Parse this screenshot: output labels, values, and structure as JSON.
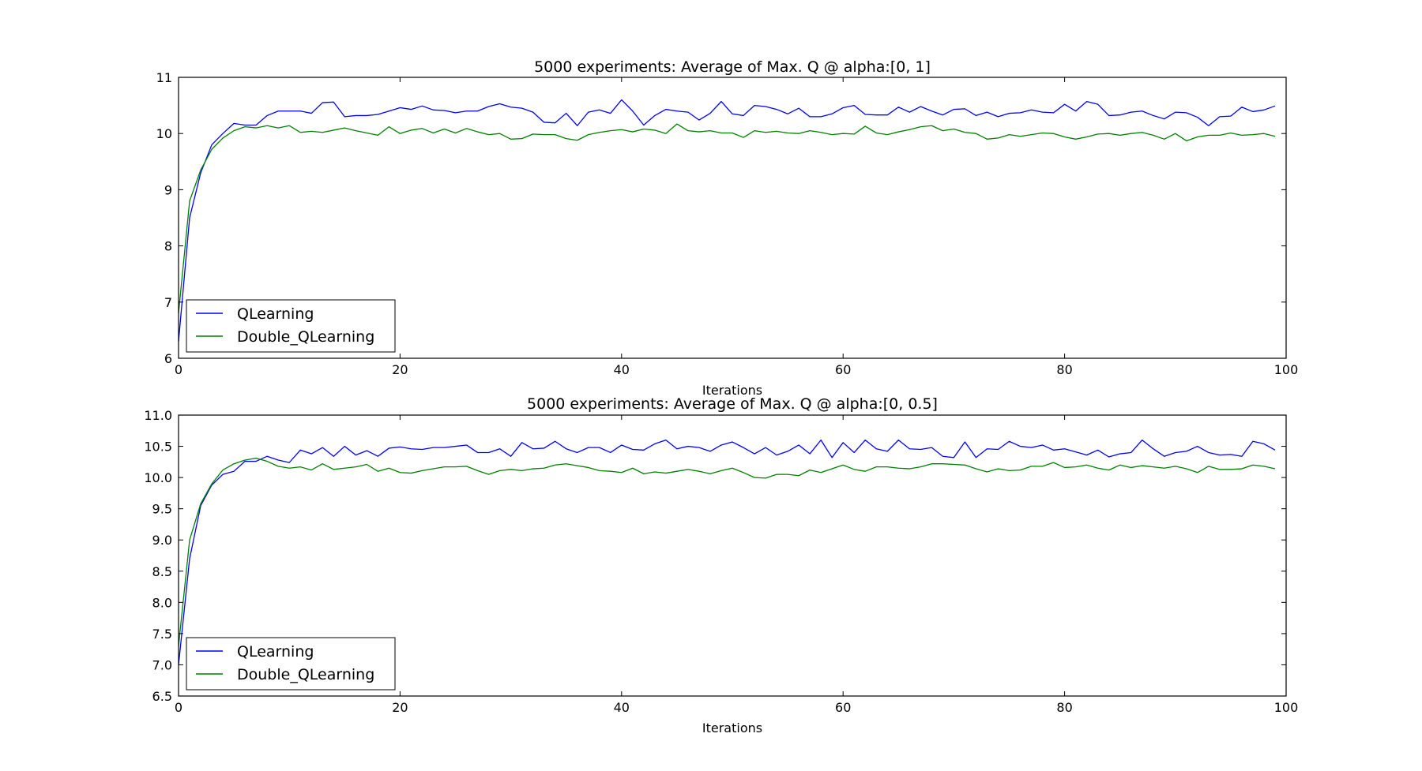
{
  "chart_data": [
    {
      "type": "line",
      "title": "5000 experiments: Average of Max. Q @ alpha:[0, 1]",
      "xlabel": "Iterations",
      "ylabel": "",
      "xlim": [
        0,
        100
      ],
      "ylim": [
        6,
        11
      ],
      "xticks": [
        0,
        20,
        40,
        60,
        80,
        100
      ],
      "yticks": [
        6,
        7,
        8,
        9,
        10,
        11
      ],
      "ytick_labels": [
        "6",
        "7",
        "8",
        "9",
        "10",
        "11"
      ],
      "grid": false,
      "legend_position": "lower-left",
      "series": [
        {
          "name": "QLearning",
          "color": "#0000ff",
          "values": [
            6.3,
            8.5,
            9.3,
            9.8,
            10.0,
            10.18,
            10.15,
            10.15,
            10.32,
            10.4,
            10.4,
            10.4,
            10.36,
            10.55,
            10.56,
            10.3,
            10.32,
            10.32,
            10.34,
            10.4,
            10.46,
            10.43,
            10.49,
            10.42,
            10.41,
            10.37,
            10.4,
            10.4,
            10.48,
            10.53,
            10.47,
            10.45,
            10.38,
            10.2,
            10.19,
            10.36,
            10.14,
            10.38,
            10.42,
            10.36,
            10.6,
            10.4,
            10.15,
            10.32,
            10.43,
            10.4,
            10.38,
            10.24,
            10.36,
            10.57,
            10.35,
            10.32,
            10.5,
            10.48,
            10.43,
            10.35,
            10.45,
            10.3,
            10.3,
            10.35,
            10.46,
            10.5,
            10.34,
            10.33,
            10.33,
            10.47,
            10.38,
            10.48,
            10.4,
            10.33,
            10.43,
            10.44,
            10.32,
            10.38,
            10.3,
            10.36,
            10.37,
            10.42,
            10.38,
            10.37,
            10.52,
            10.4,
            10.57,
            10.52,
            10.32,
            10.33,
            10.38,
            10.4,
            10.32,
            10.26,
            10.38,
            10.37,
            10.29,
            10.14,
            10.3,
            10.31,
            10.47,
            10.39,
            10.42,
            10.49
          ]
        },
        {
          "name": "Double_QLearning",
          "color": "#008000",
          "values": [
            6.8,
            8.8,
            9.35,
            9.72,
            9.92,
            10.05,
            10.12,
            10.1,
            10.14,
            10.1,
            10.14,
            10.02,
            10.04,
            10.02,
            10.06,
            10.1,
            10.05,
            10.01,
            9.97,
            10.12,
            10.0,
            10.06,
            10.09,
            10.01,
            10.08,
            10.01,
            10.09,
            10.03,
            9.98,
            10.0,
            9.9,
            9.91,
            9.99,
            9.98,
            9.98,
            9.91,
            9.88,
            9.98,
            10.02,
            10.05,
            10.07,
            10.03,
            10.08,
            10.06,
            10.0,
            10.17,
            10.05,
            10.03,
            10.05,
            10.01,
            10.01,
            9.93,
            10.05,
            10.02,
            10.04,
            10.01,
            10.0,
            10.05,
            10.02,
            9.98,
            10.0,
            9.99,
            10.13,
            10.01,
            9.98,
            10.03,
            10.07,
            10.12,
            10.14,
            10.05,
            10.08,
            10.02,
            10.0,
            9.9,
            9.92,
            9.98,
            9.95,
            9.98,
            10.01,
            10.0,
            9.94,
            9.9,
            9.94,
            9.99,
            10.0,
            9.97,
            10.0,
            10.02,
            9.97,
            9.9,
            10.0,
            9.87,
            9.94,
            9.97,
            9.97,
            10.01,
            9.97,
            9.98,
            10.0,
            9.95
          ]
        }
      ]
    },
    {
      "type": "line",
      "title": "5000 experiments: Average of Max. Q @ alpha:[0, 0.5]",
      "xlabel": "Iterations",
      "ylabel": "",
      "xlim": [
        0,
        100
      ],
      "ylim": [
        6.5,
        11
      ],
      "xticks": [
        0,
        20,
        40,
        60,
        80,
        100
      ],
      "yticks": [
        6.5,
        7.0,
        7.5,
        8.0,
        8.5,
        9.0,
        9.5,
        10.0,
        10.5,
        11.0
      ],
      "ytick_labels": [
        "6.5",
        "7.0",
        "7.5",
        "8.0",
        "8.5",
        "9.0",
        "9.5",
        "10.0",
        "10.5",
        "11.0"
      ],
      "grid": false,
      "legend_position": "lower-left",
      "series": [
        {
          "name": "QLearning",
          "color": "#0000ff",
          "values": [
            7.0,
            8.7,
            9.55,
            9.88,
            10.05,
            10.1,
            10.26,
            10.26,
            10.34,
            10.28,
            10.24,
            10.44,
            10.38,
            10.48,
            10.34,
            10.5,
            10.36,
            10.43,
            10.34,
            10.47,
            10.49,
            10.46,
            10.45,
            10.48,
            10.48,
            10.5,
            10.52,
            10.4,
            10.4,
            10.46,
            10.34,
            10.56,
            10.46,
            10.47,
            10.58,
            10.46,
            10.4,
            10.48,
            10.48,
            10.4,
            10.52,
            10.45,
            10.44,
            10.54,
            10.6,
            10.46,
            10.5,
            10.48,
            10.42,
            10.52,
            10.57,
            10.48,
            10.38,
            10.48,
            10.36,
            10.42,
            10.52,
            10.38,
            10.6,
            10.32,
            10.56,
            10.4,
            10.6,
            10.46,
            10.42,
            10.6,
            10.46,
            10.45,
            10.48,
            10.34,
            10.32,
            10.57,
            10.32,
            10.46,
            10.45,
            10.58,
            10.5,
            10.48,
            10.52,
            10.44,
            10.46,
            10.41,
            10.36,
            10.44,
            10.33,
            10.38,
            10.4,
            10.6,
            10.46,
            10.34,
            10.4,
            10.42,
            10.5,
            10.4,
            10.36,
            10.37,
            10.34,
            10.58,
            10.54,
            10.44
          ]
        },
        {
          "name": "Double_QLearning",
          "color": "#008000",
          "values": [
            7.3,
            9.0,
            9.58,
            9.9,
            10.12,
            10.22,
            10.28,
            10.31,
            10.26,
            10.18,
            10.15,
            10.17,
            10.12,
            10.22,
            10.13,
            10.15,
            10.17,
            10.21,
            10.1,
            10.15,
            10.08,
            10.07,
            10.11,
            10.14,
            10.17,
            10.17,
            10.18,
            10.11,
            10.05,
            10.11,
            10.13,
            10.11,
            10.14,
            10.15,
            10.2,
            10.22,
            10.19,
            10.16,
            10.11,
            10.1,
            10.08,
            10.15,
            10.06,
            10.09,
            10.07,
            10.1,
            10.13,
            10.1,
            10.06,
            10.11,
            10.15,
            10.08,
            10.0,
            9.99,
            10.05,
            10.05,
            10.03,
            10.12,
            10.08,
            10.14,
            10.2,
            10.13,
            10.1,
            10.17,
            10.17,
            10.15,
            10.14,
            10.17,
            10.22,
            10.22,
            10.21,
            10.2,
            10.14,
            10.09,
            10.14,
            10.11,
            10.12,
            10.18,
            10.18,
            10.24,
            10.16,
            10.17,
            10.2,
            10.15,
            10.12,
            10.2,
            10.16,
            10.19,
            10.17,
            10.15,
            10.18,
            10.14,
            10.08,
            10.18,
            10.13,
            10.13,
            10.14,
            10.2,
            10.18,
            10.14
          ]
        }
      ]
    }
  ]
}
